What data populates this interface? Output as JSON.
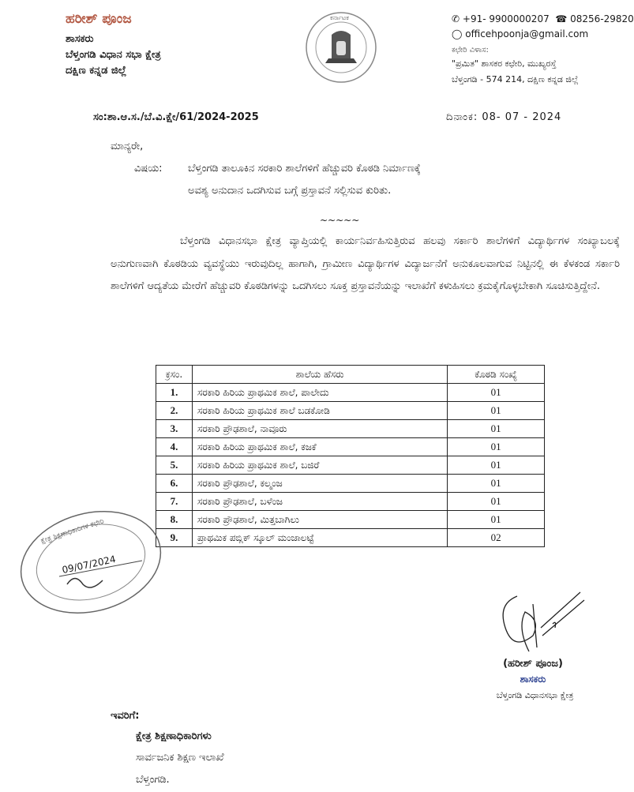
{
  "letterhead": {
    "name": "ಹರೀಶ್ ಪೂಂಜ",
    "designation": "ಶಾಸಕರು",
    "constituency": "ಬೆಳ್ತಂಗಡಿ ವಿಧಾನ ಸಭಾ ಕ್ಷೇತ್ರ",
    "district": "ದಕ್ಷಿಣ ಕನ್ನಡ ಜಿಲ್ಲೆ",
    "emblem_text": "ಕರ್ನಾಟಕ",
    "phone": "+91- 9900000207",
    "landline": "08256-29820",
    "email": "officehpoonja@gmail.com",
    "office_label": "ಕಛೇರಿ ವಿಳಾಸ:",
    "address_line1": "\"ಪ್ರಮಿತ\" ಶಾಸಕರ ಕಛೇರಿ, ಮುಖ್ಯರಸ್ತೆ",
    "address_line2": "ಬೆಳ್ತಂಗಡಿ - 574 214, ದಕ್ಷಿಣ ಕನ್ನಡ ಜಿಲ್ಲೆ"
  },
  "ref_no": "ಸಂ:ಶಾ.ಆ.ಸ./ಬೆ.ವಿ.ಕ್ಷೇ/61/2024-2025",
  "date": "ದಿನಾಂಕ: 08- 07 - 2024",
  "salutation": "ಮಾನ್ಯರೇ,",
  "subject_label": "ವಿಷಯ:",
  "subject_line1": "ಬೆಳ್ತಂಗಡಿ ತಾಲೂಕಿನ ಸರಕಾರಿ ಶಾಲೆಗಳಿಗೆ ಹೆಚ್ಚುವರಿ ಕೊಠಡಿ ನಿರ್ಮಾಣಕ್ಕೆ",
  "subject_line2": "ಅವಶ್ಯ ಅನುದಾನ ಒದಗಿಸುವ ಬಗ್ಗೆ ಪ್ರಸ್ತಾವನೆ ಸಲ್ಲಿಸುವ ಕುರಿತು.",
  "ornament": "~~~~~",
  "body": "ಬೆಳ್ತಂಗಡಿ ವಿಧಾನಸಭಾ ಕ್ಷೇತ್ರ ವ್ಯಾಪ್ತಿಯಲ್ಲಿ ಕಾರ್ಯನಿರ್ವಹಿಸುತ್ತಿರುವ ಹಲವು ಸರ್ಕಾರಿ ಶಾಲೆಗಳಿಗೆ ವಿದ್ಯಾರ್ಥಿಗಳ ಸಂಖ್ಯಾಬಲಕ್ಕೆ ಅನುಗುಣವಾಗಿ ಕೊಠಡಿಯ ವ್ಯವಸ್ಥೆಯು ಇರುವುದಿಲ್ಲ ಹಾಗಾಗಿ, ಗ್ರಾಮೀಣ ವಿದ್ಯಾರ್ಥಿಗಳ ವಿದ್ಯಾರ್ಜನೆಗೆ ಅನುಕೂಲವಾಗುವ ನಿಟ್ಟಿನಲ್ಲಿ ಈ ಕೆಳಕಂಡ ಸರ್ಕಾರಿ ಶಾಲೆಗಳಿಗೆ ಆದ್ಯತೆಯ ಮೇರೆಗೆ ಹೆಚ್ಚುವರಿ ಕೊಠಡಿಗಳನ್ನು ಒದಗಿಸಲು ಸೂಕ್ತ ಪ್ರಸ್ತಾವನೆಯನ್ನು ಇಲಾಖೆಗೆ ಕಳುಹಿಸಲು ಕ್ರಮಕೈಗೊಳ್ಳಬೇಕಾಗಿ ಸೂಚಿಸುತ್ತಿದ್ದೇನೆ.",
  "table": {
    "headers": [
      "ಕ್ರಸಂ.",
      "ಶಾಲೆಯ ಹೆಸರು",
      "ಕೊಠಡಿ ಸಂಖ್ಯೆ"
    ],
    "rows": [
      [
        "1.",
        "ಸರಕಾರಿ ಹಿರಿಯ ಪ್ರಾಥಮಿಕ ಶಾಲೆ, ಪಾಲೇದು",
        "01"
      ],
      [
        "2.",
        "ಸರಕಾರಿ ಹಿರಿಯ ಪ್ರಾಥಮಿಕ ಶಾಲೆ ಬಡಕೋಡಿ",
        "01"
      ],
      [
        "3.",
        "ಸರಕಾರಿ ಪ್ರೌಢಶಾಲೆ, ನಾವೂರು",
        "01"
      ],
      [
        "4.",
        "ಸರಕಾರಿ ಹಿರಿಯ ಪ್ರಾಥಮಿಕ ಶಾಲೆ, ಕಜಕೆ",
        "01"
      ],
      [
        "5.",
        "ಸರಕಾರಿ ಹಿರಿಯ ಪ್ರಾಥಮಿಕ ಶಾಲೆ, ಬಜಿರೆ",
        "01"
      ],
      [
        "6.",
        "ಸರಕಾರಿ ಪ್ರೌಢಶಾಲೆ, ಕಲ್ಮಂಜ",
        "01"
      ],
      [
        "7.",
        "ಸರಕಾರಿ ಪ್ರೌಢಶಾಲೆ, ಬಳೆಂಜ",
        "01"
      ],
      [
        "8.",
        "ಸರಕಾರಿ ಪ್ರೌಢಶಾಲೆ, ಮಿತ್ತಬಾಗಿಲು",
        "01"
      ],
      [
        "9.",
        "ಪ್ರಾಥಮಿಕ ಪಬ್ಲಿಕ್ ಸ್ಕೂಲ್ ಮಂಜಾಲಟ್ಟೆ",
        "02"
      ]
    ]
  },
  "stamp": {
    "text": "ಕ್ಷೇತ್ರ ಶಿಕ್ಷಣಾಧಿಕಾರಿಗಳ ಕಛೇರಿ",
    "date": "09/07/2024"
  },
  "signatory": {
    "name": "(ಹರೀಶ್ ಪೂಂಜ)",
    "designation": "ಶಾಸಕರು",
    "constituency": "ಬೆಳ್ತಂಗಡಿ ವಿಧಾನಸಭಾ ಕ್ಷೇತ್ರ"
  },
  "to_label": "ಇವರಿಗೆ:",
  "recipient": [
    "ಕ್ಷೇತ್ರ ಶಿಕ್ಷಣಾಧಿಕಾರಿಗಳು",
    "ಸಾರ್ವಜನಿಕ ಶಿಕ್ಷಣ ಇಲಾಖೆ",
    "ಬೆಳ್ತಂಗಡಿ."
  ],
  "colors": {
    "name_header": "#b35a45",
    "signatory_designation": "#2a3f8f"
  }
}
